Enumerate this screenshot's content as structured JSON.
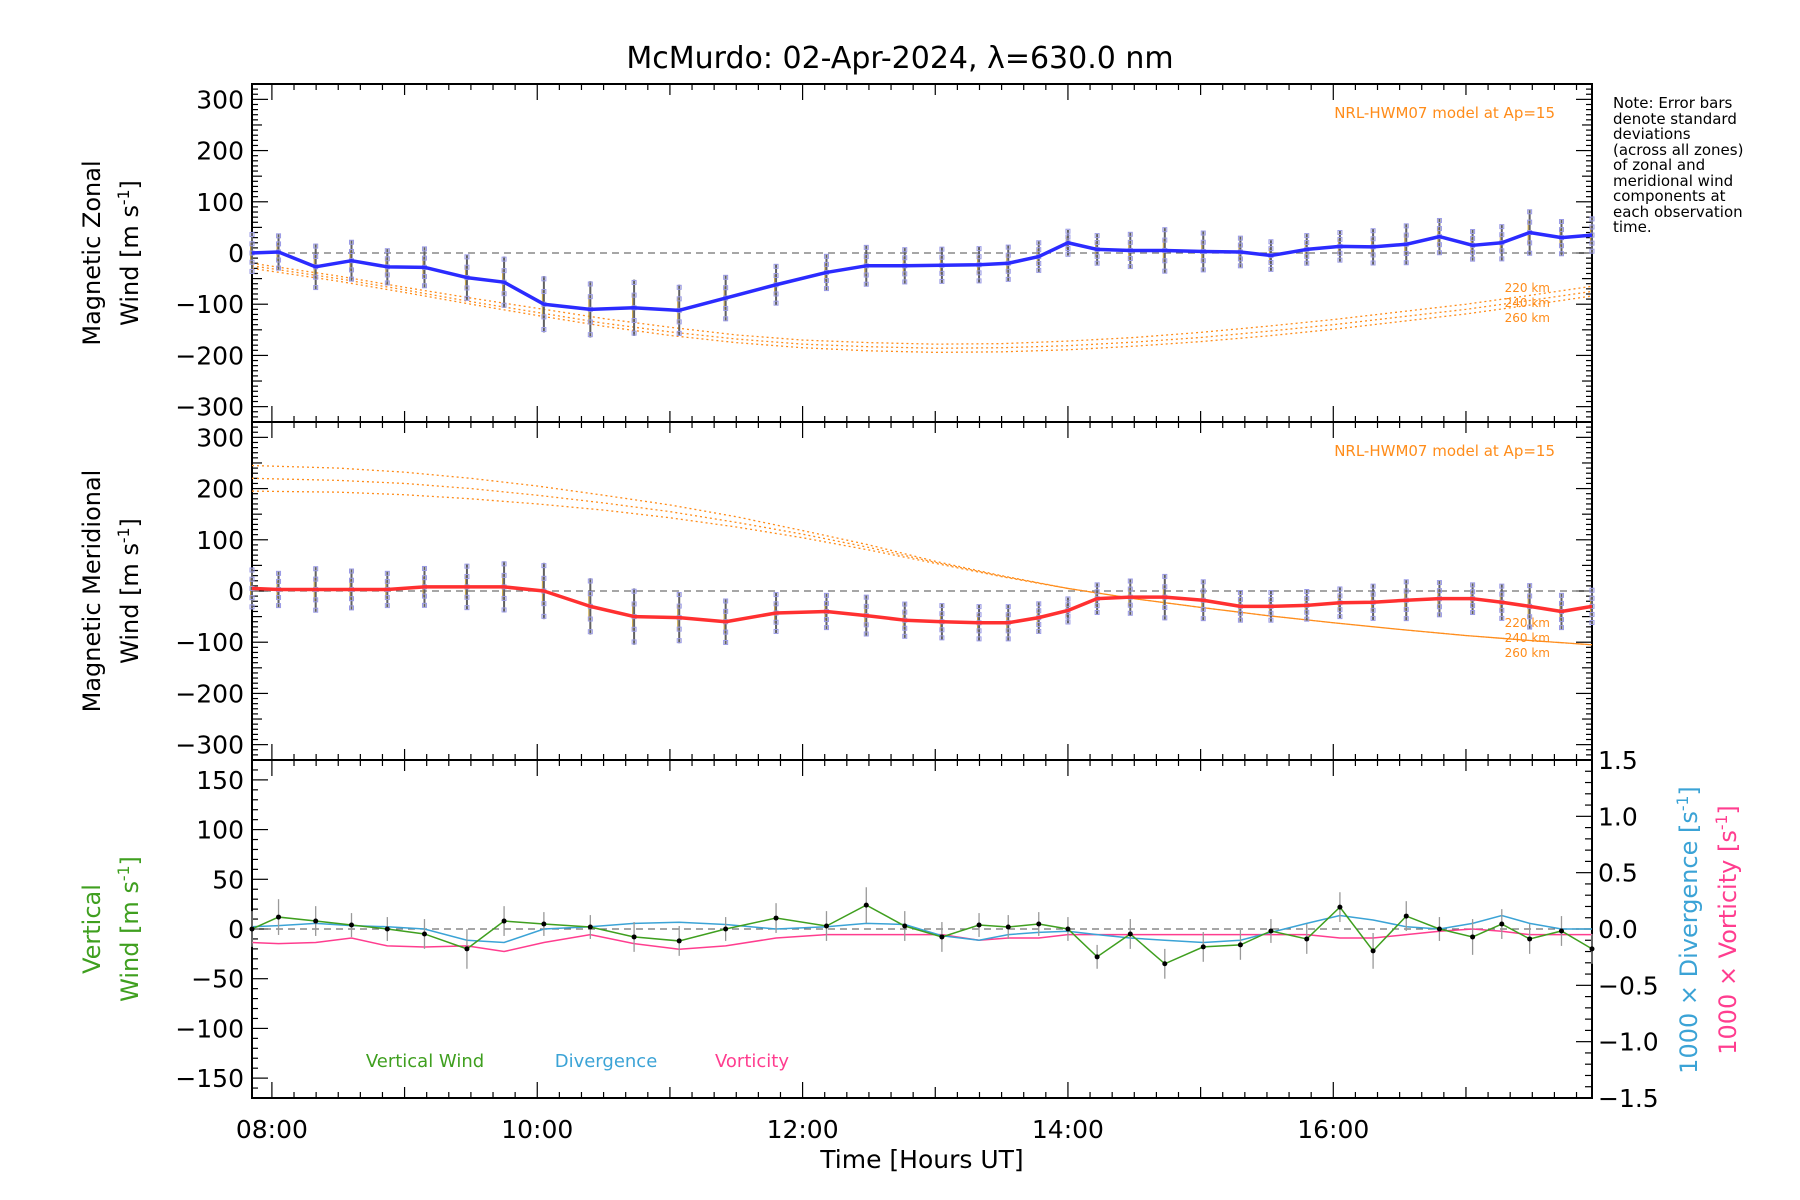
{
  "title": "McMurdo: 02-Apr-2024, λ=630.0 nm",
  "note_lines": [
    "Note: Error bars",
    "denote standard",
    "deviations",
    "(across all zones)",
    "of zonal and",
    "meridional wind",
    "components at",
    "each observation",
    "time."
  ],
  "colors": {
    "zonal": "#2b2bff",
    "meridional": "#ff3030",
    "model": "#ff8c1a",
    "vertical": "#3f9f1f",
    "divergence": "#3ba3d6",
    "vorticity": "#ff3d8f",
    "zone_marks": "#9a9ae6",
    "error_bar": "#606060",
    "zero_line": "#707070"
  },
  "x_axis": {
    "label": "Time [Hours UT]",
    "range_hours": [
      7.85,
      17.95
    ],
    "ticks": [
      {
        "v": 8,
        "label": "08:00"
      },
      {
        "v": 10,
        "label": "10:00"
      },
      {
        "v": 12,
        "label": "12:00"
      },
      {
        "v": 14,
        "label": "14:00"
      },
      {
        "v": 16,
        "label": "16:00"
      }
    ]
  },
  "chart_data": [
    {
      "type": "line",
      "panel": "zonal",
      "ylabel_lines": [
        "Magnetic Zonal",
        "Wind [m s-1]"
      ],
      "ylim": [
        -330,
        330
      ],
      "yticks": [
        -300,
        -200,
        -100,
        0,
        100,
        200,
        300
      ],
      "model_label": "NRL-HWM07 model at Ap=15",
      "model_altitude_labels": [
        "220 km",
        "240 km",
        "260 km"
      ],
      "series": [
        {
          "values_key": "wind",
          "x": [
            7.85,
            8.05,
            8.33,
            8.6,
            8.87,
            9.15,
            9.47,
            9.75,
            10.05,
            10.4,
            10.73,
            11.07,
            11.42,
            11.8,
            12.18,
            12.48,
            12.77,
            13.05,
            13.33,
            13.55,
            13.78,
            14.0,
            14.22,
            14.47,
            14.73,
            15.02,
            15.3,
            15.53,
            15.8,
            16.05,
            16.3,
            16.55,
            16.8,
            17.05,
            17.27,
            17.48,
            17.72,
            17.95
          ],
          "values": [
            0,
            2,
            -27,
            -15,
            -27,
            -28,
            -48,
            -57,
            -100,
            -110,
            -107,
            -112,
            -88,
            -62,
            -38,
            -25,
            -25,
            -24,
            -23,
            -20,
            -7,
            20,
            7,
            5,
            5,
            3,
            2,
            -5,
            7,
            13,
            12,
            17,
            32,
            15,
            20,
            40,
            30,
            35
          ]
        }
      ],
      "model_curves": [
        {
          "altitude": "220 km",
          "x": [
            7.85,
            8.5,
            9.0,
            9.5,
            10.0,
            10.5,
            11.0,
            11.5,
            12.0,
            12.5,
            13.0,
            13.5,
            14.0,
            14.5,
            15.0,
            15.5,
            16.0,
            16.5,
            17.0,
            17.5,
            17.95
          ],
          "values": [
            -20,
            -45,
            -67,
            -88,
            -108,
            -128,
            -145,
            -160,
            -170,
            -175,
            -178,
            -177,
            -172,
            -165,
            -155,
            -143,
            -130,
            -115,
            -100,
            -82,
            -65
          ]
        },
        {
          "altitude": "240 km",
          "x": [
            7.85,
            8.5,
            9.0,
            9.5,
            10.0,
            10.5,
            11.0,
            11.5,
            12.0,
            12.5,
            13.0,
            13.5,
            14.0,
            14.5,
            15.0,
            15.5,
            16.0,
            16.5,
            17.0,
            17.5,
            17.95
          ],
          "values": [
            -25,
            -50,
            -72,
            -95,
            -116,
            -137,
            -154,
            -168,
            -178,
            -183,
            -186,
            -185,
            -181,
            -174,
            -165,
            -153,
            -140,
            -125,
            -110,
            -92,
            -75
          ]
        },
        {
          "altitude": "260 km",
          "x": [
            7.85,
            8.5,
            9.0,
            9.5,
            10.0,
            10.5,
            11.0,
            11.5,
            12.0,
            12.5,
            13.0,
            13.5,
            14.0,
            14.5,
            15.0,
            15.5,
            16.0,
            16.5,
            17.0,
            17.5,
            17.95
          ],
          "values": [
            -30,
            -55,
            -77,
            -100,
            -122,
            -143,
            -161,
            -175,
            -185,
            -191,
            -194,
            -193,
            -189,
            -182,
            -173,
            -162,
            -149,
            -134,
            -119,
            -101,
            -84
          ]
        }
      ]
    },
    {
      "type": "line",
      "panel": "meridional",
      "ylabel_lines": [
        "Magnetic Meridional",
        "Wind [m s-1]"
      ],
      "ylim": [
        -330,
        330
      ],
      "yticks": [
        -300,
        -200,
        -100,
        0,
        100,
        200,
        300
      ],
      "model_label": "NRL-HWM07 model at Ap=15",
      "model_altitude_labels": [
        "220 km",
        "240 km",
        "260 km"
      ],
      "series": [
        {
          "values_key": "wind",
          "x": [
            7.85,
            8.05,
            8.33,
            8.6,
            8.87,
            9.15,
            9.47,
            9.75,
            10.05,
            10.4,
            10.73,
            11.07,
            11.42,
            11.8,
            12.18,
            12.48,
            12.77,
            13.05,
            13.33,
            13.55,
            13.78,
            14.0,
            14.22,
            14.47,
            14.73,
            15.02,
            15.3,
            15.53,
            15.8,
            16.05,
            16.3,
            16.55,
            16.8,
            17.05,
            17.27,
            17.48,
            17.72,
            17.95
          ],
          "values": [
            5,
            3,
            3,
            3,
            3,
            8,
            8,
            8,
            0,
            -30,
            -50,
            -52,
            -60,
            -43,
            -40,
            -48,
            -57,
            -60,
            -62,
            -62,
            -52,
            -38,
            -15,
            -12,
            -12,
            -18,
            -30,
            -30,
            -28,
            -23,
            -22,
            -18,
            -15,
            -15,
            -22,
            -30,
            -40,
            -30
          ]
        }
      ],
      "model_curves": [
        {
          "altitude": "220 km",
          "x": [
            7.85,
            8.5,
            9.0,
            9.5,
            10.0,
            10.5,
            11.0,
            11.5,
            12.0,
            12.5,
            13.0,
            13.5,
            14.0,
            14.5,
            15.0,
            15.5,
            16.0,
            16.5,
            17.0,
            17.5,
            17.95
          ],
          "values": [
            245,
            240,
            232,
            220,
            205,
            187,
            168,
            145,
            118,
            90,
            58,
            30,
            5,
            -15,
            -32,
            -48,
            -62,
            -75,
            -87,
            -97,
            -105
          ]
        },
        {
          "altitude": "240 km",
          "x": [
            7.85,
            8.5,
            9.0,
            9.5,
            10.0,
            10.5,
            11.0,
            11.5,
            12.0,
            12.5,
            13.0,
            13.5,
            14.0,
            14.5,
            15.0,
            15.5,
            16.0,
            16.5,
            17.0,
            17.5,
            17.95
          ],
          "values": [
            220,
            216,
            210,
            200,
            187,
            172,
            155,
            134,
            111,
            85,
            56,
            29,
            5,
            -15,
            -32,
            -48,
            -62,
            -75,
            -87,
            -97,
            -105
          ]
        },
        {
          "altitude": "260 km",
          "x": [
            7.85,
            8.5,
            9.0,
            9.5,
            10.0,
            10.5,
            11.0,
            11.5,
            12.0,
            12.5,
            13.0,
            13.5,
            14.0,
            14.5,
            15.0,
            15.5,
            16.0,
            16.5,
            17.0,
            17.5,
            17.95
          ],
          "values": [
            195,
            193,
            188,
            180,
            170,
            158,
            143,
            125,
            104,
            80,
            54,
            28,
            5,
            -15,
            -32,
            -48,
            -62,
            -75,
            -87,
            -97,
            -105
          ]
        }
      ]
    },
    {
      "type": "line",
      "panel": "vertical",
      "ylabel_lines": [
        "Vertical",
        "Wind [m s-1]"
      ],
      "right_ylabels": [
        "1000 × Divergence [s-1]",
        "1000 × Vorticity [s-1]"
      ],
      "ylim": [
        -170,
        170
      ],
      "yticks": [
        -150,
        -100,
        -50,
        0,
        50,
        100,
        150
      ],
      "ylim_right": [
        -1.5,
        1.5
      ],
      "yticks_right": [
        -1.5,
        -1.0,
        -0.5,
        0.0,
        0.5,
        1.0,
        1.5
      ],
      "legend": [
        "Vertical Wind",
        "Divergence",
        "Vorticity"
      ],
      "series": [
        {
          "name": "Vertical Wind",
          "x": [
            7.85,
            8.05,
            8.33,
            8.6,
            8.87,
            9.15,
            9.47,
            9.75,
            10.05,
            10.4,
            10.73,
            11.07,
            11.42,
            11.8,
            12.18,
            12.48,
            12.77,
            13.05,
            13.33,
            13.55,
            13.78,
            14.0,
            14.22,
            14.47,
            14.73,
            15.02,
            15.3,
            15.53,
            15.8,
            16.05,
            16.3,
            16.55,
            16.8,
            17.05,
            17.27,
            17.48,
            17.72,
            17.95
          ],
          "values": [
            0,
            12,
            8,
            4,
            0,
            -5,
            -20,
            8,
            5,
            2,
            -8,
            -12,
            0,
            11,
            3,
            24,
            3,
            -8,
            4,
            2,
            5,
            0,
            -28,
            -5,
            -35,
            -18,
            -16,
            -2,
            -10,
            22,
            -22,
            13,
            0,
            -8,
            5,
            -10,
            -2,
            -20
          ],
          "errors": [
            18,
            18,
            15,
            12,
            12,
            15,
            20,
            15,
            12,
            12,
            15,
            15,
            12,
            15,
            15,
            18,
            15,
            15,
            12,
            12,
            12,
            12,
            12,
            15,
            15,
            15,
            15,
            12,
            15,
            15,
            18,
            15,
            12,
            18,
            15,
            15,
            15,
            15
          ]
        },
        {
          "name": "Divergence",
          "x": [
            7.85,
            8.05,
            8.33,
            8.6,
            8.87,
            9.15,
            9.47,
            9.75,
            10.05,
            10.4,
            10.73,
            11.07,
            11.42,
            11.8,
            12.18,
            12.48,
            12.77,
            13.05,
            13.33,
            13.55,
            13.78,
            14.0,
            14.22,
            14.47,
            14.73,
            15.02,
            15.3,
            15.53,
            15.8,
            16.05,
            16.3,
            16.55,
            16.8,
            17.05,
            17.27,
            17.48,
            17.72,
            17.95
          ],
          "values": [
            0.02,
            0.03,
            0.05,
            0.03,
            0.02,
            0.0,
            -0.1,
            -0.12,
            0.0,
            0.02,
            0.05,
            0.06,
            0.04,
            0.0,
            0.02,
            0.05,
            0.04,
            -0.06,
            -0.1,
            -0.05,
            -0.03,
            -0.02,
            -0.05,
            -0.08,
            -0.1,
            -0.12,
            -0.1,
            -0.03,
            0.05,
            0.12,
            0.08,
            0.02,
            0.0,
            0.05,
            0.12,
            0.05,
            0.0,
            0.0
          ]
        },
        {
          "name": "Vorticity",
          "x": [
            7.85,
            8.05,
            8.33,
            8.6,
            8.87,
            9.15,
            9.47,
            9.75,
            10.05,
            10.4,
            10.73,
            11.07,
            11.42,
            11.8,
            12.18,
            12.48,
            12.77,
            13.05,
            13.33,
            13.55,
            13.78,
            14.0,
            14.22,
            14.47,
            14.73,
            15.02,
            15.3,
            15.53,
            15.8,
            16.05,
            16.3,
            16.55,
            16.8,
            17.05,
            17.27,
            17.48,
            17.72,
            17.95
          ],
          "values": [
            -0.12,
            -0.13,
            -0.12,
            -0.08,
            -0.15,
            -0.16,
            -0.15,
            -0.2,
            -0.12,
            -0.05,
            -0.13,
            -0.18,
            -0.15,
            -0.08,
            -0.05,
            -0.05,
            -0.05,
            -0.05,
            -0.1,
            -0.08,
            -0.08,
            -0.05,
            -0.05,
            -0.05,
            -0.05,
            -0.05,
            -0.05,
            -0.05,
            -0.05,
            -0.08,
            -0.08,
            -0.05,
            -0.02,
            0.0,
            -0.02,
            -0.05,
            -0.05,
            -0.05
          ]
        }
      ]
    }
  ]
}
